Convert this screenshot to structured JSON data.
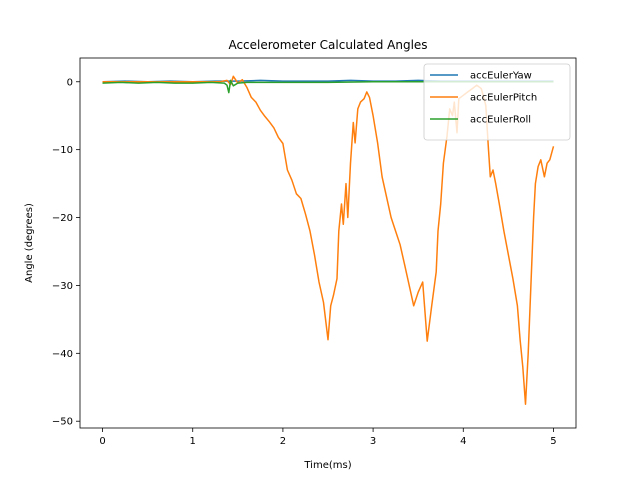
{
  "chart_data": {
    "type": "line",
    "title": "Accelerometer Calculated Angles",
    "xlabel": "Time(ms)",
    "ylabel": "Angle (degrees)",
    "xlim": [
      -0.25,
      5.25
    ],
    "ylim": [
      -51,
      3.5
    ],
    "xticks": [
      0,
      1,
      2,
      3,
      4,
      5
    ],
    "yticks": [
      0,
      -10,
      -20,
      -30,
      -40,
      -50
    ],
    "grid": false,
    "legend_position": "top-right",
    "series": [
      {
        "name": "accEulerYaw",
        "color": "#1f77b4",
        "points": [
          [
            0,
            0
          ],
          [
            0.25,
            0.1
          ],
          [
            0.5,
            0
          ],
          [
            0.75,
            0.1
          ],
          [
            1.0,
            0
          ],
          [
            1.25,
            0.1
          ],
          [
            1.5,
            0.1
          ],
          [
            1.75,
            0.2
          ],
          [
            2.0,
            0.1
          ],
          [
            2.25,
            0.1
          ],
          [
            2.5,
            0.1
          ],
          [
            2.75,
            0.2
          ],
          [
            3.0,
            0.1
          ],
          [
            3.25,
            0.1
          ],
          [
            3.5,
            0.2
          ],
          [
            3.75,
            0.1
          ],
          [
            4.0,
            0.1
          ],
          [
            4.25,
            0.1
          ],
          [
            4.5,
            0.1
          ],
          [
            4.75,
            0.1
          ],
          [
            5.0,
            0.1
          ]
        ]
      },
      {
        "name": "accEulerPitch",
        "color": "#ff7f0e",
        "points": [
          [
            0,
            0
          ],
          [
            0.5,
            0
          ],
          [
            1.0,
            0
          ],
          [
            1.3,
            0
          ],
          [
            1.38,
            0.2
          ],
          [
            1.42,
            -0.4
          ],
          [
            1.45,
            0.8
          ],
          [
            1.5,
            -0.2
          ],
          [
            1.55,
            0.3
          ],
          [
            1.6,
            -0.8
          ],
          [
            1.65,
            -2.3
          ],
          [
            1.7,
            -3.0
          ],
          [
            1.75,
            -4.2
          ],
          [
            1.8,
            -5.1
          ],
          [
            1.85,
            -5.9
          ],
          [
            1.9,
            -6.8
          ],
          [
            1.95,
            -8.2
          ],
          [
            2.0,
            -9.1
          ],
          [
            2.05,
            -13.0
          ],
          [
            2.1,
            -14.5
          ],
          [
            2.15,
            -16.5
          ],
          [
            2.2,
            -17.2
          ],
          [
            2.25,
            -19.5
          ],
          [
            2.3,
            -22.0
          ],
          [
            2.35,
            -25.5
          ],
          [
            2.4,
            -29.5
          ],
          [
            2.45,
            -32.5
          ],
          [
            2.5,
            -38.0
          ],
          [
            2.53,
            -33.0
          ],
          [
            2.56,
            -31.5
          ],
          [
            2.6,
            -29.0
          ],
          [
            2.62,
            -22.0
          ],
          [
            2.65,
            -18.0
          ],
          [
            2.67,
            -21.0
          ],
          [
            2.7,
            -15.0
          ],
          [
            2.72,
            -20.0
          ],
          [
            2.75,
            -12.0
          ],
          [
            2.78,
            -6.0
          ],
          [
            2.8,
            -9.0
          ],
          [
            2.83,
            -4.0
          ],
          [
            2.86,
            -3.0
          ],
          [
            2.9,
            -2.5
          ],
          [
            2.93,
            -1.5
          ],
          [
            2.96,
            -2.3
          ],
          [
            3.0,
            -5.0
          ],
          [
            3.05,
            -9.0
          ],
          [
            3.1,
            -14.0
          ],
          [
            3.15,
            -17.0
          ],
          [
            3.2,
            -20.0
          ],
          [
            3.25,
            -22.0
          ],
          [
            3.3,
            -24.0
          ],
          [
            3.35,
            -27.0
          ],
          [
            3.4,
            -30.0
          ],
          [
            3.45,
            -33.0
          ],
          [
            3.5,
            -31.0
          ],
          [
            3.55,
            -29.5
          ],
          [
            3.6,
            -38.2
          ],
          [
            3.65,
            -33.0
          ],
          [
            3.7,
            -28.0
          ],
          [
            3.72,
            -22.0
          ],
          [
            3.75,
            -18.0
          ],
          [
            3.78,
            -12.0
          ],
          [
            3.8,
            -10.0
          ],
          [
            3.82,
            -8.0
          ],
          [
            3.85,
            -4.0
          ],
          [
            3.88,
            -5.0
          ],
          [
            3.9,
            -3.0
          ],
          [
            3.93,
            -7.5
          ],
          [
            3.95,
            -2.5
          ],
          [
            4.0,
            -2.0
          ],
          [
            4.05,
            -1.5
          ],
          [
            4.1,
            -1.0
          ],
          [
            4.15,
            -0.5
          ],
          [
            4.2,
            -1.0
          ],
          [
            4.25,
            -3.5
          ],
          [
            4.28,
            -10.0
          ],
          [
            4.3,
            -14.0
          ],
          [
            4.33,
            -13.0
          ],
          [
            4.36,
            -15.0
          ],
          [
            4.4,
            -18.0
          ],
          [
            4.45,
            -22.0
          ],
          [
            4.5,
            -25.5
          ],
          [
            4.55,
            -29.0
          ],
          [
            4.6,
            -33.0
          ],
          [
            4.63,
            -38.0
          ],
          [
            4.66,
            -42.0
          ],
          [
            4.69,
            -47.5
          ],
          [
            4.72,
            -40.0
          ],
          [
            4.75,
            -30.0
          ],
          [
            4.78,
            -20.0
          ],
          [
            4.8,
            -15.0
          ],
          [
            4.83,
            -12.5
          ],
          [
            4.86,
            -11.5
          ],
          [
            4.9,
            -14.0
          ],
          [
            4.93,
            -12.0
          ],
          [
            4.96,
            -11.5
          ],
          [
            5.0,
            -9.5
          ]
        ]
      },
      {
        "name": "accEulerRoll",
        "color": "#2ca02c",
        "points": [
          [
            0,
            -0.2
          ],
          [
            0.2,
            -0.1
          ],
          [
            0.4,
            -0.2
          ],
          [
            0.6,
            -0.1
          ],
          [
            0.8,
            -0.2
          ],
          [
            1.0,
            -0.2
          ],
          [
            1.2,
            -0.1
          ],
          [
            1.35,
            -0.2
          ],
          [
            1.38,
            -0.5
          ],
          [
            1.4,
            -1.6
          ],
          [
            1.42,
            0.2
          ],
          [
            1.45,
            -0.6
          ],
          [
            1.5,
            -0.2
          ],
          [
            1.6,
            -0.1
          ],
          [
            1.8,
            -0.1
          ],
          [
            2.0,
            -0.1
          ],
          [
            2.5,
            -0.1
          ],
          [
            3.0,
            0
          ],
          [
            3.5,
            0
          ],
          [
            4.0,
            0
          ],
          [
            4.5,
            0
          ],
          [
            5.0,
            0
          ]
        ]
      }
    ]
  }
}
